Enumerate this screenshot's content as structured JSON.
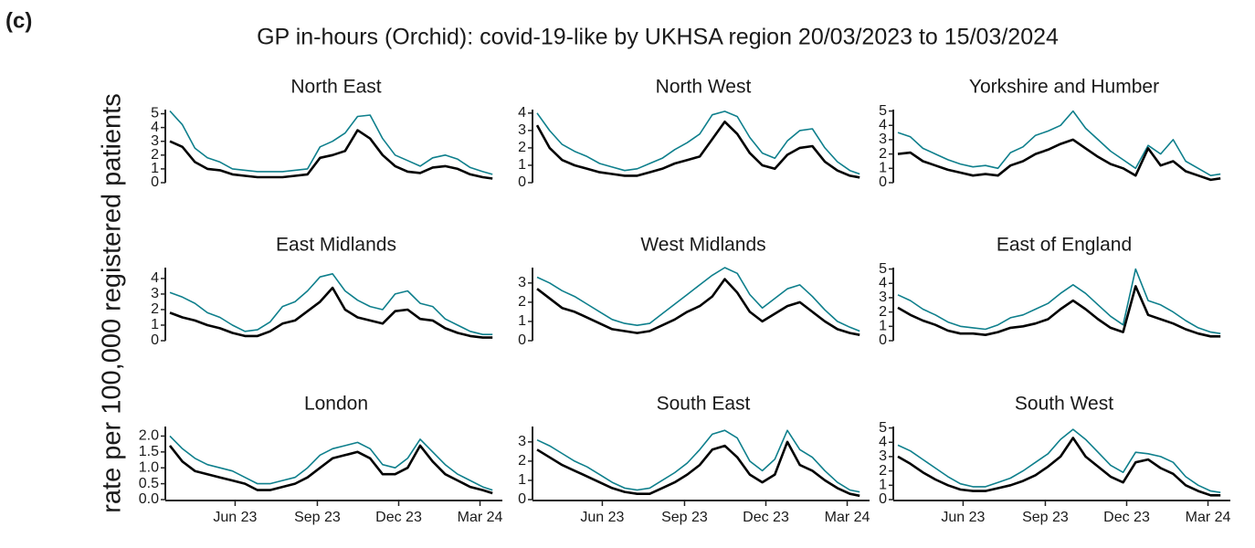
{
  "panel_label": "(c)",
  "title": "GP in-hours (Orchid): covid-19-like by UKHSA region 20/03/2023 to 15/03/2024",
  "ylabel": "rate per 100,000 registered patients",
  "chart_data": [
    {
      "type": "line",
      "title": "North East",
      "x": [
        0,
        14,
        28,
        42,
        56,
        70,
        84,
        98,
        112,
        126,
        140,
        154,
        168,
        182,
        196,
        210,
        224,
        238,
        252,
        266,
        280,
        294,
        308,
        322,
        336,
        350,
        361
      ],
      "xlim": [
        0,
        372
      ],
      "ylim": [
        0,
        5.3
      ],
      "yticks": [
        0,
        1,
        2,
        3,
        4,
        5
      ],
      "series": [
        {
          "color": "#0e7f8c",
          "values": [
            5.2,
            4.2,
            2.5,
            1.8,
            1.5,
            1.0,
            0.9,
            0.8,
            0.8,
            0.8,
            0.9,
            1.0,
            2.6,
            3.0,
            3.6,
            4.8,
            4.9,
            3.2,
            2.0,
            1.6,
            1.2,
            1.8,
            2.0,
            1.7,
            1.1,
            0.8,
            0.6
          ]
        },
        {
          "color": "#000000",
          "values": [
            3.0,
            2.6,
            1.5,
            1.0,
            0.9,
            0.6,
            0.5,
            0.4,
            0.4,
            0.4,
            0.5,
            0.6,
            1.8,
            2.0,
            2.3,
            3.8,
            3.2,
            2.0,
            1.2,
            0.8,
            0.7,
            1.1,
            1.2,
            1.0,
            0.6,
            0.4,
            0.3
          ]
        }
      ]
    },
    {
      "type": "line",
      "title": "North West",
      "x": [
        0,
        14,
        28,
        42,
        56,
        70,
        84,
        98,
        112,
        126,
        140,
        154,
        168,
        182,
        196,
        210,
        224,
        238,
        252,
        266,
        280,
        294,
        308,
        322,
        336,
        350,
        361
      ],
      "xlim": [
        0,
        372
      ],
      "ylim": [
        0,
        4.2
      ],
      "yticks": [
        0,
        1,
        2,
        3,
        4
      ],
      "series": [
        {
          "color": "#0e7f8c",
          "values": [
            4.0,
            3.0,
            2.2,
            1.8,
            1.5,
            1.1,
            0.9,
            0.7,
            0.8,
            1.1,
            1.4,
            1.9,
            2.3,
            2.8,
            3.9,
            4.1,
            3.8,
            2.6,
            1.7,
            1.4,
            2.4,
            3.0,
            3.1,
            2.0,
            1.2,
            0.7,
            0.5
          ]
        },
        {
          "color": "#000000",
          "values": [
            3.3,
            2.0,
            1.3,
            1.0,
            0.8,
            0.6,
            0.5,
            0.4,
            0.4,
            0.6,
            0.8,
            1.1,
            1.3,
            1.5,
            2.5,
            3.5,
            2.8,
            1.7,
            1.0,
            0.8,
            1.6,
            2.0,
            2.1,
            1.2,
            0.7,
            0.4,
            0.3
          ]
        }
      ]
    },
    {
      "type": "line",
      "title": "Yorkshire and Humber",
      "x": [
        0,
        14,
        28,
        42,
        56,
        70,
        84,
        98,
        112,
        126,
        140,
        154,
        168,
        182,
        196,
        210,
        224,
        238,
        252,
        266,
        280,
        294,
        308,
        322,
        336,
        350,
        361
      ],
      "xlim": [
        0,
        372
      ],
      "ylim": [
        0,
        5.1
      ],
      "yticks": [
        0,
        1,
        2,
        3,
        4,
        5
      ],
      "series": [
        {
          "color": "#0e7f8c",
          "values": [
            3.5,
            3.2,
            2.4,
            2.0,
            1.6,
            1.3,
            1.1,
            1.2,
            1.0,
            2.1,
            2.5,
            3.3,
            3.6,
            4.0,
            5.0,
            3.8,
            3.0,
            2.2,
            1.6,
            1.0,
            2.6,
            2.0,
            3.0,
            1.5,
            1.0,
            0.5,
            0.6
          ]
        },
        {
          "color": "#000000",
          "values": [
            2.0,
            2.1,
            1.5,
            1.2,
            0.9,
            0.7,
            0.5,
            0.6,
            0.5,
            1.2,
            1.5,
            2.0,
            2.3,
            2.7,
            3.0,
            2.4,
            1.8,
            1.3,
            1.0,
            0.5,
            2.4,
            1.2,
            1.5,
            0.8,
            0.5,
            0.2,
            0.3
          ]
        }
      ]
    },
    {
      "type": "line",
      "title": "East Midlands",
      "x": [
        0,
        14,
        28,
        42,
        56,
        70,
        84,
        98,
        112,
        126,
        140,
        154,
        168,
        182,
        196,
        210,
        224,
        238,
        252,
        266,
        280,
        294,
        308,
        322,
        336,
        350,
        361
      ],
      "xlim": [
        0,
        372
      ],
      "ylim": [
        0,
        4.7
      ],
      "yticks": [
        0,
        1,
        2,
        3,
        4
      ],
      "series": [
        {
          "color": "#0e7f8c",
          "values": [
            3.1,
            2.8,
            2.4,
            1.8,
            1.5,
            1.0,
            0.6,
            0.7,
            1.2,
            2.2,
            2.5,
            3.2,
            4.1,
            4.3,
            3.2,
            2.6,
            2.2,
            2.0,
            3.0,
            3.2,
            2.4,
            2.2,
            1.4,
            1.0,
            0.6,
            0.4,
            0.4
          ]
        },
        {
          "color": "#000000",
          "values": [
            1.8,
            1.5,
            1.3,
            1.0,
            0.8,
            0.5,
            0.3,
            0.3,
            0.6,
            1.1,
            1.3,
            1.9,
            2.5,
            3.4,
            2.0,
            1.5,
            1.3,
            1.1,
            1.9,
            2.0,
            1.4,
            1.3,
            0.8,
            0.5,
            0.3,
            0.2,
            0.2
          ]
        }
      ]
    },
    {
      "type": "line",
      "title": "West Midlands",
      "x": [
        0,
        14,
        28,
        42,
        56,
        70,
        84,
        98,
        112,
        126,
        140,
        154,
        168,
        182,
        196,
        210,
        224,
        238,
        252,
        266,
        280,
        294,
        308,
        322,
        336,
        350,
        361
      ],
      "xlim": [
        0,
        372
      ],
      "ylim": [
        0,
        3.8
      ],
      "yticks": [
        0,
        1,
        2,
        3
      ],
      "series": [
        {
          "color": "#0e7f8c",
          "values": [
            3.3,
            3.0,
            2.6,
            2.3,
            1.9,
            1.5,
            1.1,
            0.9,
            0.8,
            0.9,
            1.4,
            1.9,
            2.4,
            2.9,
            3.4,
            3.8,
            3.5,
            2.4,
            1.7,
            2.2,
            2.7,
            2.9,
            2.3,
            1.6,
            1.0,
            0.7,
            0.5
          ]
        },
        {
          "color": "#000000",
          "values": [
            2.7,
            2.2,
            1.7,
            1.5,
            1.2,
            0.9,
            0.6,
            0.5,
            0.4,
            0.5,
            0.8,
            1.1,
            1.5,
            1.8,
            2.3,
            3.2,
            2.5,
            1.5,
            1.0,
            1.4,
            1.8,
            2.0,
            1.5,
            1.0,
            0.6,
            0.4,
            0.3
          ]
        }
      ]
    },
    {
      "type": "line",
      "title": "East of England",
      "x": [
        0,
        14,
        28,
        42,
        56,
        70,
        84,
        98,
        112,
        126,
        140,
        154,
        168,
        182,
        196,
        210,
        224,
        238,
        252,
        266,
        280,
        294,
        308,
        322,
        336,
        350,
        361
      ],
      "xlim": [
        0,
        372
      ],
      "ylim": [
        0,
        5.1
      ],
      "yticks": [
        0,
        1,
        2,
        3,
        4,
        5
      ],
      "series": [
        {
          "color": "#0e7f8c",
          "values": [
            3.2,
            2.8,
            2.2,
            1.8,
            1.3,
            1.0,
            0.9,
            0.8,
            1.1,
            1.6,
            1.8,
            2.2,
            2.6,
            3.3,
            3.9,
            3.3,
            2.5,
            1.7,
            1.1,
            5.0,
            2.8,
            2.5,
            2.0,
            1.4,
            0.9,
            0.6,
            0.5
          ]
        },
        {
          "color": "#000000",
          "values": [
            2.3,
            1.8,
            1.4,
            1.1,
            0.7,
            0.5,
            0.5,
            0.4,
            0.6,
            0.9,
            1.0,
            1.2,
            1.5,
            2.2,
            2.8,
            2.2,
            1.5,
            0.9,
            0.6,
            3.8,
            1.8,
            1.5,
            1.2,
            0.8,
            0.5,
            0.3,
            0.3
          ]
        }
      ]
    },
    {
      "type": "line",
      "title": "London",
      "x": [
        0,
        14,
        28,
        42,
        56,
        70,
        84,
        98,
        112,
        126,
        140,
        154,
        168,
        182,
        196,
        210,
        224,
        238,
        252,
        266,
        280,
        294,
        308,
        322,
        336,
        350,
        361
      ],
      "xlim": [
        0,
        372
      ],
      "ylim": [
        0,
        2.3
      ],
      "yticks": [
        {
          "value": 0,
          "label": "0.0"
        },
        0.5,
        {
          "value": 1,
          "label": "1.0"
        },
        1.5,
        {
          "value": 2,
          "label": "2.0"
        }
      ],
      "xticks": [
        {
          "value": 73,
          "label": "Jun 23"
        },
        {
          "value": 165,
          "label": "Sep 23"
        },
        {
          "value": 256,
          "label": "Dec 23"
        },
        {
          "value": 347,
          "label": "Mar 24"
        }
      ],
      "series": [
        {
          "color": "#0e7f8c",
          "values": [
            2.0,
            1.6,
            1.3,
            1.1,
            1.0,
            0.9,
            0.7,
            0.5,
            0.5,
            0.6,
            0.7,
            1.0,
            1.4,
            1.6,
            1.7,
            1.8,
            1.6,
            1.1,
            1.0,
            1.3,
            1.9,
            1.5,
            1.1,
            0.8,
            0.6,
            0.4,
            0.3
          ]
        },
        {
          "color": "#000000",
          "values": [
            1.7,
            1.2,
            0.9,
            0.8,
            0.7,
            0.6,
            0.5,
            0.3,
            0.3,
            0.4,
            0.5,
            0.7,
            1.0,
            1.3,
            1.4,
            1.5,
            1.3,
            0.8,
            0.8,
            1.0,
            1.7,
            1.2,
            0.8,
            0.6,
            0.4,
            0.3,
            0.2
          ]
        }
      ]
    },
    {
      "type": "line",
      "title": "South East",
      "x": [
        0,
        14,
        28,
        42,
        56,
        70,
        84,
        98,
        112,
        126,
        140,
        154,
        168,
        182,
        196,
        210,
        224,
        238,
        252,
        266,
        280,
        294,
        308,
        322,
        336,
        350,
        361
      ],
      "xlim": [
        0,
        372
      ],
      "ylim": [
        0,
        3.8
      ],
      "yticks": [
        0,
        1,
        2,
        3
      ],
      "xticks": [
        {
          "value": 73,
          "label": "Jun 23"
        },
        {
          "value": 165,
          "label": "Sep 23"
        },
        {
          "value": 256,
          "label": "Dec 23"
        },
        {
          "value": 347,
          "label": "Mar 24"
        }
      ],
      "series": [
        {
          "color": "#0e7f8c",
          "values": [
            3.1,
            2.8,
            2.4,
            2.0,
            1.7,
            1.3,
            0.9,
            0.6,
            0.5,
            0.6,
            1.0,
            1.4,
            1.9,
            2.6,
            3.4,
            3.6,
            3.2,
            2.0,
            1.5,
            2.1,
            3.6,
            2.6,
            2.2,
            1.5,
            0.9,
            0.5,
            0.4
          ]
        },
        {
          "color": "#000000",
          "values": [
            2.6,
            2.2,
            1.8,
            1.5,
            1.2,
            0.9,
            0.6,
            0.4,
            0.3,
            0.3,
            0.6,
            0.9,
            1.3,
            1.8,
            2.6,
            2.8,
            2.2,
            1.3,
            0.9,
            1.3,
            3.0,
            1.8,
            1.5,
            1.0,
            0.6,
            0.3,
            0.2
          ]
        }
      ]
    },
    {
      "type": "line",
      "title": "South West",
      "x": [
        0,
        14,
        28,
        42,
        56,
        70,
        84,
        98,
        112,
        126,
        140,
        154,
        168,
        182,
        196,
        210,
        224,
        238,
        252,
        266,
        280,
        294,
        308,
        322,
        336,
        350,
        361
      ],
      "xlim": [
        0,
        372
      ],
      "ylim": [
        0,
        5.1
      ],
      "yticks": [
        0,
        1,
        2,
        3,
        4,
        5
      ],
      "xticks": [
        {
          "value": 73,
          "label": "Jun 23"
        },
        {
          "value": 165,
          "label": "Sep 23"
        },
        {
          "value": 256,
          "label": "Dec 23"
        },
        {
          "value": 347,
          "label": "Mar 24"
        }
      ],
      "series": [
        {
          "color": "#0e7f8c",
          "values": [
            3.8,
            3.4,
            2.8,
            2.2,
            1.6,
            1.1,
            0.9,
            0.9,
            1.2,
            1.5,
            2.0,
            2.6,
            3.2,
            4.2,
            4.9,
            4.2,
            3.3,
            2.4,
            1.9,
            3.3,
            3.2,
            3.0,
            2.6,
            1.6,
            1.0,
            0.6,
            0.5
          ]
        },
        {
          "color": "#000000",
          "values": [
            3.0,
            2.5,
            1.9,
            1.4,
            1.0,
            0.7,
            0.6,
            0.6,
            0.8,
            1.0,
            1.3,
            1.7,
            2.3,
            3.0,
            4.3,
            3.0,
            2.3,
            1.6,
            1.2,
            2.6,
            2.8,
            2.2,
            1.8,
            1.0,
            0.6,
            0.3,
            0.3
          ]
        }
      ]
    }
  ]
}
